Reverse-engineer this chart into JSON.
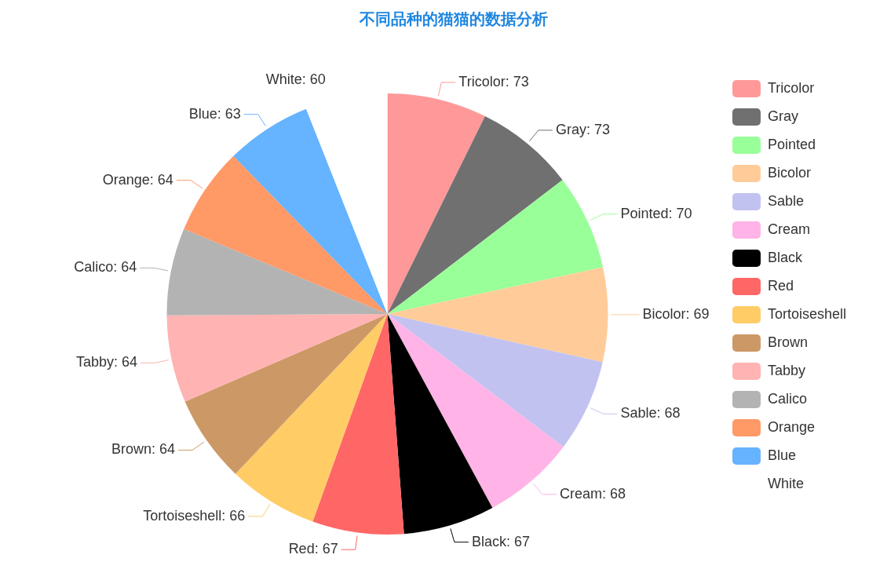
{
  "chart_data": {
    "type": "pie",
    "title": "不同品种的猫猫的数据分析",
    "categories": [
      "Tricolor",
      "Gray",
      "Pointed",
      "Bicolor",
      "Sable",
      "Cream",
      "Black",
      "Red",
      "Tortoiseshell",
      "Brown",
      "Tabby",
      "Calico",
      "Orange",
      "Blue",
      "White"
    ],
    "values": [
      73,
      73,
      70,
      69,
      68,
      68,
      67,
      67,
      66,
      64,
      64,
      64,
      64,
      63,
      60
    ],
    "colors": [
      "#ff9999",
      "#707070",
      "#99ff99",
      "#ffcc99",
      "#c2c2f0",
      "#ffb3e6",
      "#000000",
      "#ff6666",
      "#ffcc66",
      "#cc9966",
      "#ffb3b3",
      "#b3b3b3",
      "#ff9966",
      "#66b3ff",
      "#ffffff"
    ],
    "value_labels": [
      ": 73",
      ": 73",
      ": 70",
      ": 69",
      ": 68",
      ": 68",
      ": 67",
      ": 67",
      ": 66",
      ": 64",
      ": 64",
      ": 64",
      ": 64",
      ": 63",
      ": 60"
    ],
    "legend": "right"
  }
}
